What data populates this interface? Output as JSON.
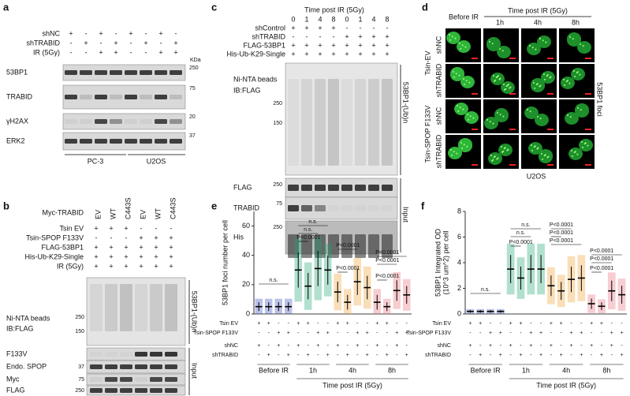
{
  "panels": {
    "a": {
      "letter": "a",
      "conditions": [
        {
          "label": "shNC",
          "signs": [
            "+",
            "-",
            "+",
            "-",
            "+",
            "-",
            "+",
            "-"
          ]
        },
        {
          "label": "shTRABID",
          "signs": [
            "-",
            "+",
            "-",
            "+",
            "-",
            "+",
            "-",
            "+"
          ]
        },
        {
          "label": "IR (5Gy)",
          "signs": [
            "-",
            "-",
            "+",
            "+",
            "-",
            "-",
            "+",
            "+"
          ]
        }
      ],
      "unit": "KDa",
      "blots": [
        {
          "label": "53BP1",
          "marker": 250
        },
        {
          "label": "TRABID",
          "marker": 75
        },
        {
          "label": "γH2AX",
          "marker": 20
        },
        {
          "label": "ERK2",
          "marker": 37
        }
      ],
      "cell_lines": [
        "PC-3",
        "U2OS"
      ]
    },
    "b": {
      "letter": "b",
      "lane_header": {
        "label": "Myc-TRABID",
        "lanes": [
          "EV",
          "WT",
          "C443S",
          "EV",
          "WT",
          "C443S"
        ]
      },
      "conditions": [
        {
          "label": "Tsin EV",
          "signs": [
            "+",
            "+",
            "+",
            "-",
            "-",
            "-"
          ]
        },
        {
          "label": "Tsin-SPOP F133V",
          "signs": [
            "-",
            "-",
            "-",
            "+",
            "+",
            "+"
          ]
        },
        {
          "label": "FLAG-53BP1",
          "signs": [
            "+",
            "+",
            "+",
            "+",
            "+",
            "+"
          ]
        },
        {
          "label": "His-Ub-K29-Single",
          "signs": [
            "+",
            "+",
            "+",
            "+",
            "+",
            "+"
          ]
        },
        {
          "label": "IR (5Gy)",
          "signs": [
            "+",
            "+",
            "+",
            "+",
            "+",
            "+"
          ]
        }
      ],
      "pulldown": {
        "lines": [
          "Ni-NTA beads",
          "IB:FLAG"
        ],
        "side": "53BP1-(Ub)n",
        "markers": [
          250,
          150
        ]
      },
      "input_blots": [
        {
          "label": "F133V"
        },
        {
          "label": "Endo. SPOP",
          "marker": 37
        },
        {
          "label": "Myc",
          "marker": 75
        },
        {
          "label": "FLAG",
          "marker": 250
        }
      ],
      "input_label": "Input"
    },
    "c": {
      "letter": "c",
      "time_header": "Time post IR (5Gy)",
      "times": [
        "0",
        "1",
        "4",
        "8",
        "0",
        "1",
        "4",
        "8"
      ],
      "conditions": [
        {
          "label": "shControl",
          "signs": [
            "+",
            "+",
            "+",
            "+",
            "-",
            "-",
            "-",
            "-"
          ]
        },
        {
          "label": "shTRABID",
          "signs": [
            "-",
            "-",
            "-",
            "-",
            "+",
            "+",
            "+",
            "+"
          ]
        },
        {
          "label": "FLAG-53BP1",
          "signs": [
            "+",
            "+",
            "+",
            "+",
            "+",
            "+",
            "+",
            "+"
          ]
        },
        {
          "label": "His-Ub-K29-Single",
          "signs": [
            "+",
            "+",
            "+",
            "+",
            "+",
            "+",
            "+",
            "+"
          ]
        }
      ],
      "pulldown": {
        "lines": [
          "Ni-NTA beads",
          "IB:FLAG"
        ],
        "side": "53BP1-(Ub)n",
        "markers": [
          250,
          150
        ]
      },
      "input_blots": [
        {
          "label": "FLAG",
          "marker": 250
        },
        {
          "label": "TRABID",
          "marker": 75
        },
        {
          "label": "His",
          "marker": 250
        }
      ],
      "input_label": "Input"
    },
    "d": {
      "letter": "d",
      "first_column": "Before IR",
      "time_header": "Time post IR (5Gy)",
      "times": [
        "1h",
        "4h",
        "8h"
      ],
      "groups": [
        {
          "label": "Tsin-EV",
          "rows": [
            "shNC",
            "shTRABID"
          ]
        },
        {
          "label": "Tsin-SPOP F133V",
          "rows": [
            "shNC",
            "shTRABID"
          ]
        }
      ],
      "side": "53BP1 foci",
      "cell_line": "U2OS"
    }
  },
  "chart_data": [
    {
      "type": "dotplot",
      "letter": "e",
      "ylabel": [
        "53BP1 foci number per cell"
      ],
      "xlabel": "Time post IR (5Gy)",
      "groups": [
        "Before IR",
        "1h",
        "4h",
        "8h"
      ],
      "colors": [
        "#3d4fc0",
        "#1fa774",
        "#f0a030",
        "#e86f7a"
      ],
      "values": [
        5,
        5,
        5,
        5,
        30,
        19,
        31,
        30,
        15,
        8,
        22,
        18,
        8,
        5,
        16,
        13
      ],
      "errors": [
        3,
        3,
        3,
        3,
        12,
        9,
        12,
        10,
        7,
        5,
        9,
        8,
        5,
        3,
        7,
        6
      ],
      "ylim": [
        0,
        70
      ],
      "yticks": [
        0,
        20,
        40,
        60
      ],
      "conditions": [
        {
          "label": "Tsin EV",
          "signs": [
            "+",
            "+",
            "-",
            "-",
            "+",
            "+",
            "-",
            "-",
            "+",
            "+",
            "-",
            "-",
            "+",
            "+",
            "-",
            "-"
          ]
        },
        {
          "label": "Tsin-SPOP F133V",
          "signs": [
            "-",
            "-",
            "+",
            "+",
            "-",
            "-",
            "+",
            "+",
            "-",
            "-",
            "+",
            "+",
            "-",
            "-",
            "+",
            "+"
          ]
        },
        {
          "label": "shNC",
          "signs": [
            "+",
            "-",
            "+",
            "-",
            "+",
            "-",
            "+",
            "-",
            "+",
            "-",
            "+",
            "-",
            "+",
            "-",
            "+",
            "-"
          ]
        },
        {
          "label": "shTRABID",
          "signs": [
            "-",
            "+",
            "-",
            "+",
            "-",
            "+",
            "-",
            "+",
            "-",
            "+",
            "-",
            "+",
            "-",
            "+",
            "-",
            "+"
          ]
        }
      ],
      "annotations": [
        "n.s.",
        "n.s.",
        "n.s.",
        "P<0.0001",
        "P<0.0001",
        "P<0.0001",
        "P<0.0001",
        "P<0.0001",
        "P<0.0001"
      ]
    },
    {
      "type": "dotplot",
      "letter": "f",
      "ylabel": [
        "53BP1 Integrated OD",
        "(10^3 um^2) per cell"
      ],
      "xlabel": "Time post IR (5Gy)",
      "groups": [
        "Before IR",
        "1h",
        "4h",
        "8h"
      ],
      "colors": [
        "#3d4fc0",
        "#1fa774",
        "#f0a030",
        "#e86f7a"
      ],
      "values": [
        0.2,
        0.2,
        0.2,
        0.2,
        3.5,
        2.8,
        3.5,
        3.5,
        2.2,
        1.8,
        2.7,
        2.8,
        0.8,
        0.6,
        1.8,
        1.5
      ],
      "errors": [
        0.1,
        0.1,
        0.1,
        0.1,
        1.1,
        0.9,
        1.1,
        1.1,
        0.8,
        0.7,
        1.0,
        1.0,
        0.4,
        0.3,
        0.8,
        0.7
      ],
      "ylim": [
        0,
        8
      ],
      "yticks": [
        0,
        2,
        4,
        6,
        8
      ],
      "conditions": [
        {
          "label": "Tsin EV",
          "signs": [
            "+",
            "+",
            "-",
            "-",
            "+",
            "+",
            "-",
            "-",
            "+",
            "+",
            "-",
            "-",
            "+",
            "+",
            "-",
            "-"
          ]
        },
        {
          "label": "Tsin-SPOP F133V",
          "signs": [
            "-",
            "-",
            "+",
            "+",
            "-",
            "-",
            "+",
            "+",
            "-",
            "-",
            "+",
            "+",
            "-",
            "-",
            "+",
            "+"
          ]
        },
        {
          "label": "shNC",
          "signs": [
            "+",
            "-",
            "+",
            "-",
            "+",
            "-",
            "+",
            "-",
            "+",
            "-",
            "+",
            "-",
            "+",
            "-",
            "+",
            "-"
          ]
        },
        {
          "label": "shTRABID",
          "signs": [
            "-",
            "+",
            "-",
            "+",
            "-",
            "+",
            "-",
            "+",
            "-",
            "+",
            "-",
            "+",
            "-",
            "+",
            "-",
            "+"
          ]
        }
      ],
      "annotations": [
        "n.s.",
        "n.s.",
        "n.s.",
        "P<0.0001",
        "P<0.0001",
        "P<0.0001",
        "P<0.0001",
        "P<0.0001",
        "P<0.0001",
        "P<0.0001"
      ]
    }
  ]
}
